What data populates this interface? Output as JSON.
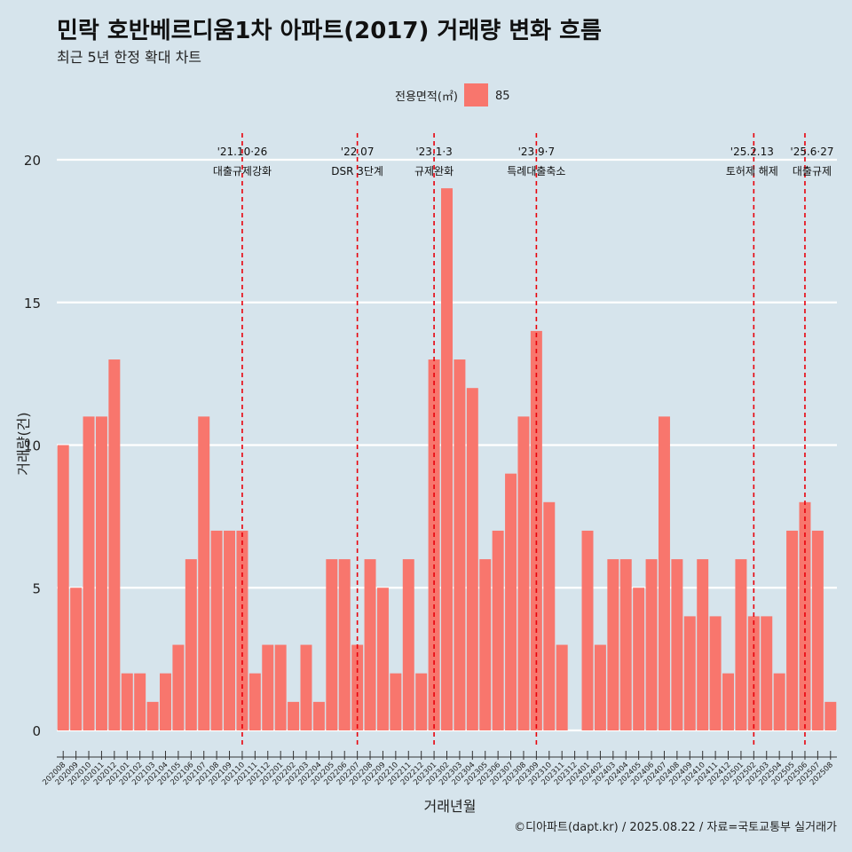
{
  "title": "민락 호반베르디움1차 아파트(2017) 거래량 변화 흐름",
  "subtitle": "최근 5년 한정 확대 차트",
  "caption": "©디아파트(dapt.kr) / 2025.08.22 / 자료=국토교통부 실거래가",
  "colors": {
    "background": "#d6e4ec",
    "bar": "#f8766d",
    "gridline": "#ffffff",
    "event_line": "#e8000b"
  },
  "chart_data": {
    "type": "bar",
    "xlabel": "거래년월",
    "ylabel": "거래량(건)",
    "ylim": [
      0,
      20
    ],
    "yticks": [
      0,
      5,
      10,
      15,
      20
    ],
    "grid": true,
    "legend": {
      "title": "전용면적(㎡)",
      "position": "top",
      "entries": [
        "85"
      ]
    },
    "categories": [
      "202008",
      "202009",
      "202010",
      "202011",
      "202012",
      "202101",
      "202102",
      "202103",
      "202104",
      "202105",
      "202106",
      "202107",
      "202108",
      "202109",
      "202110",
      "202111",
      "202112",
      "202201",
      "202202",
      "202203",
      "202204",
      "202205",
      "202206",
      "202207",
      "202208",
      "202209",
      "202210",
      "202211",
      "202212",
      "202301",
      "202302",
      "202303",
      "202304",
      "202305",
      "202306",
      "202307",
      "202308",
      "202309",
      "202310",
      "202311",
      "202312",
      "202401",
      "202402",
      "202403",
      "202404",
      "202405",
      "202406",
      "202407",
      "202408",
      "202409",
      "202410",
      "202411",
      "202412",
      "202501",
      "202502",
      "202503",
      "202504",
      "202505",
      "202506",
      "202507",
      "202508"
    ],
    "series": [
      {
        "name": "85",
        "values": [
          10,
          5,
          11,
          11,
          13,
          2,
          2,
          1,
          2,
          3,
          6,
          11,
          7,
          7,
          7,
          2,
          3,
          3,
          1,
          3,
          1,
          6,
          6,
          3,
          6,
          5,
          2,
          6,
          2,
          13,
          19,
          13,
          12,
          6,
          7,
          9,
          11,
          14,
          8,
          3,
          0,
          7,
          3,
          6,
          6,
          5,
          6,
          11,
          6,
          4,
          6,
          4,
          2,
          6,
          4,
          4,
          2,
          7,
          8,
          7,
          1
        ]
      }
    ],
    "annotations": [
      {
        "at": "202110",
        "date": "'21.10·26",
        "label": "대출규제강화"
      },
      {
        "at": "202207",
        "date": "'22.07",
        "label": "DSR 3단계"
      },
      {
        "at": "202301",
        "date": "'23.1·3",
        "label": "규제완화"
      },
      {
        "at": "202309",
        "date": "'23.9·7",
        "label": "특례대출축소"
      },
      {
        "at": "202502",
        "date": "'25.2.13",
        "label": "토허제 해제"
      },
      {
        "at": "202506",
        "date": "'25.6·27",
        "label": "대출규제"
      }
    ]
  }
}
